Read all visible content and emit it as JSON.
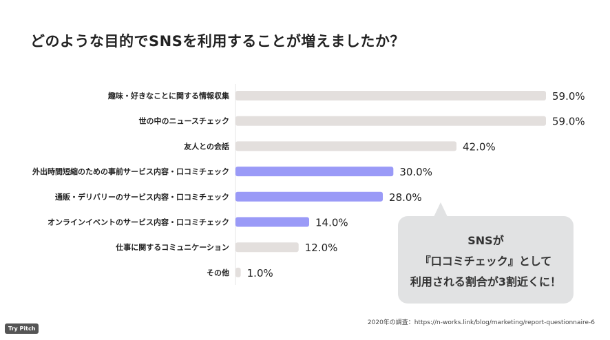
{
  "title": "どのような目的でSNSを利用することが増えましたか？",
  "chart_data": {
    "type": "bar",
    "orientation": "horizontal",
    "categories": [
      "趣味・好きなことに関する情報収集",
      "世の中のニュースチェック",
      "友人との会話",
      "外出時間短縮のための事前サービス内容・口コミチェック",
      "通販・デリバリーのサービス内容・口コミチェック",
      "オンラインイベントのサービス内容・口コミチェック",
      "仕事に関するコミュニケーション",
      "その他"
    ],
    "values": [
      59.0,
      59.0,
      42.0,
      30.0,
      28.0,
      14.0,
      12.0,
      1.0
    ],
    "labels": [
      "59.0%",
      "59.0%",
      "42.0%",
      "30.0%",
      "28.0%",
      "14.0%",
      "12.0%",
      "1.0%"
    ],
    "highlighted": [
      false,
      false,
      false,
      true,
      true,
      true,
      false,
      false
    ],
    "colors": {
      "default": "#e3dfdd",
      "highlight": "#9a9af7"
    },
    "xlim": [
      0,
      59
    ]
  },
  "callout": {
    "lines": [
      "SNSが",
      "『口コミチェック』として",
      "利用される割合が3割近くに！"
    ]
  },
  "source": "2020年の調査：https://n-works.link/blog/marketing/report-questionnaire-6",
  "badge": "Try Pitch"
}
